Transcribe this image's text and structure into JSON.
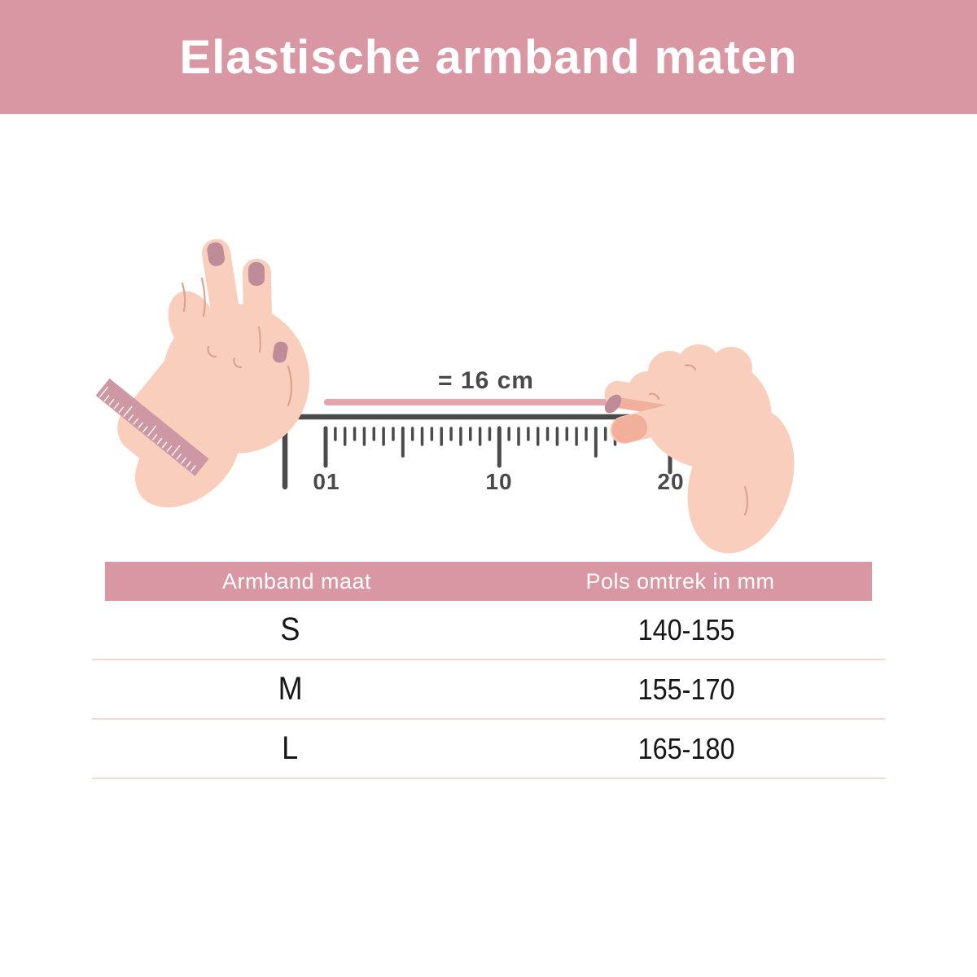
{
  "header": {
    "title": "Elastische armband maten",
    "background": "#D897A2",
    "text_color": "#FFFFFF"
  },
  "diagram": {
    "measurement_label": "= 16 cm",
    "ruler_labels": [
      "01",
      "10",
      "20"
    ],
    "colors": {
      "ruler_gray": "#4A4A4C",
      "string_pink": "#E0A6AC",
      "skin": "#F9CEBD",
      "skin_shadow": "#F2AF9C",
      "nail": "#BE8C99",
      "wristband_pink": "#CD98A4"
    }
  },
  "table": {
    "header_background": "#D897A2",
    "divider_color": "#F3D8D6",
    "columns": [
      "Armband maat",
      "Pols omtrek in mm"
    ],
    "rows": [
      {
        "size": "S",
        "range": "140-155"
      },
      {
        "size": "M",
        "range": "155-170"
      },
      {
        "size": "L",
        "range": "165-180"
      }
    ]
  }
}
